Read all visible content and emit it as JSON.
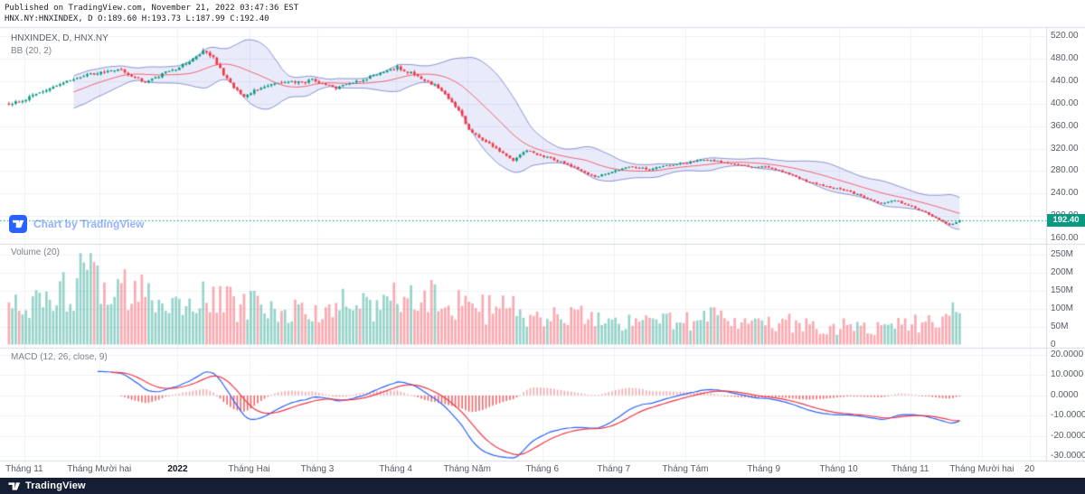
{
  "header": {
    "published_line": "Published on TradingView.com, November 21, 2022 03:47:36 EST",
    "symbol_line": "HNX.NY:HNXINDEX, D O:189.60 H:193.73 L:187.99 C:192.40"
  },
  "panes": {
    "price": {
      "title": "HNXINDEX, D, HNX.NY",
      "indicator": "BB (20, 2)"
    },
    "volume": {
      "title": "Volume (20)"
    },
    "macd": {
      "title": "MACD (12, 26, close, 9)"
    }
  },
  "watermark": {
    "label": "Chart by TradingView"
  },
  "footer": {
    "brand": "TradingView"
  },
  "price_badge": {
    "value": "192.40"
  },
  "axes": {
    "price_ticks": [
      {
        "label": "520.00",
        "value": 520
      },
      {
        "label": "480.00",
        "value": 480
      },
      {
        "label": "440.00",
        "value": 440
      },
      {
        "label": "400.00",
        "value": 400
      },
      {
        "label": "360.00",
        "value": 360
      },
      {
        "label": "320.00",
        "value": 320
      },
      {
        "label": "280.00",
        "value": 280
      },
      {
        "label": "240.00",
        "value": 240
      },
      {
        "label": "200.00",
        "value": 200
      },
      {
        "label": "160.00",
        "value": 160
      }
    ],
    "volume_ticks": [
      {
        "label": "250M",
        "value": 250
      },
      {
        "label": "200M",
        "value": 200
      },
      {
        "label": "150M",
        "value": 150
      },
      {
        "label": "100M",
        "value": 100
      },
      {
        "label": "50M",
        "value": 50
      },
      {
        "label": "0",
        "value": 0
      }
    ],
    "macd_ticks": [
      {
        "label": "20.0000",
        "value": 20
      },
      {
        "label": "10.0000",
        "value": 10
      },
      {
        "label": "0.0000",
        "value": 0
      },
      {
        "label": "-10.0000",
        "value": -10
      },
      {
        "label": "-20.0000",
        "value": -20
      },
      {
        "label": "-30.0000",
        "value": -30
      }
    ],
    "time_ticks": [
      {
        "label": "Tháng 11",
        "day": 5
      },
      {
        "label": "Tháng Mười hai",
        "day": 27
      },
      {
        "label": "2022",
        "day": 50,
        "strong": true
      },
      {
        "label": "Tháng Hai",
        "day": 71
      },
      {
        "label": "Tháng 3",
        "day": 91
      },
      {
        "label": "Tháng 4",
        "day": 114
      },
      {
        "label": "Tháng Năm",
        "day": 135
      },
      {
        "label": "Tháng 6",
        "day": 157
      },
      {
        "label": "Tháng 7",
        "day": 178
      },
      {
        "label": "Tháng Tám",
        "day": 199
      },
      {
        "label": "Tháng 9",
        "day": 222
      },
      {
        "label": "Tháng 10",
        "day": 244
      },
      {
        "label": "Tháng 11",
        "day": 265
      },
      {
        "label": "Tháng Mười hai",
        "day": 286
      },
      {
        "label": "20",
        "day": 300
      }
    ]
  },
  "colors": {
    "up": "#089981",
    "down": "#f23645",
    "vol_up": "rgba(8,153,129,0.42)",
    "vol_down": "rgba(242,54,69,0.42)",
    "bb_fill": "rgba(90,103,216,0.13)",
    "bb_line": "rgba(63,81,181,0.60)",
    "bb_basis": "rgba(242,54,69,0.75)",
    "macd_line": "#2962ff",
    "macd_signal": "#f23645",
    "hist_pos": "#f3abae",
    "hist_neg": "#ee686c",
    "grid": "#eef1f7",
    "border": "#d7dbe4",
    "last_price": "#089981",
    "badge_bg": "#089981",
    "footer_bg": "#151e33",
    "watermark_icon": "#2962ff"
  },
  "chart_data": {
    "type": "candlestick",
    "title": "HNXINDEX, D, HNX.NY",
    "symbol": "HNXINDEX",
    "exchange": "HNX.NY",
    "interval": "D",
    "quote": {
      "open": 189.6,
      "high": 193.73,
      "low": 187.99,
      "close": 192.4
    },
    "bar_count": 280,
    "axis_day_span": 305,
    "price_axis_range": [
      150,
      535
    ],
    "volume_axis_max_m": 250,
    "macd_axis_range": [
      -30,
      20
    ],
    "indicators": {
      "bollinger": {
        "length": 20,
        "mult": 2
      },
      "volume_ma": 20,
      "macd": {
        "fast": 12,
        "slow": 26,
        "source": "close",
        "signal": 9
      }
    },
    "price_waypoints": [
      [
        0,
        398
      ],
      [
        5,
        408
      ],
      [
        12,
        428
      ],
      [
        18,
        442
      ],
      [
        24,
        452
      ],
      [
        27,
        455
      ],
      [
        32,
        462
      ],
      [
        36,
        448
      ],
      [
        40,
        438
      ],
      [
        45,
        452
      ],
      [
        50,
        465
      ],
      [
        54,
        478
      ],
      [
        57,
        493
      ],
      [
        60,
        482
      ],
      [
        63,
        452
      ],
      [
        66,
        428
      ],
      [
        69,
        412
      ],
      [
        71,
        420
      ],
      [
        76,
        432
      ],
      [
        81,
        440
      ],
      [
        86,
        436
      ],
      [
        89,
        442
      ],
      [
        91,
        438
      ],
      [
        96,
        428
      ],
      [
        101,
        436
      ],
      [
        106,
        448
      ],
      [
        110,
        458
      ],
      [
        114,
        464
      ],
      [
        118,
        454
      ],
      [
        122,
        442
      ],
      [
        126,
        428
      ],
      [
        130,
        404
      ],
      [
        133,
        378
      ],
      [
        135,
        352
      ],
      [
        139,
        336
      ],
      [
        144,
        316
      ],
      [
        148,
        298
      ],
      [
        152,
        317
      ],
      [
        155,
        310
      ],
      [
        157,
        306
      ],
      [
        162,
        296
      ],
      [
        167,
        283
      ],
      [
        172,
        269
      ],
      [
        175,
        275
      ],
      [
        178,
        282
      ],
      [
        183,
        288
      ],
      [
        188,
        283
      ],
      [
        193,
        290
      ],
      [
        199,
        295
      ],
      [
        205,
        300
      ],
      [
        210,
        295
      ],
      [
        216,
        289
      ],
      [
        222,
        287
      ],
      [
        228,
        277
      ],
      [
        234,
        262
      ],
      [
        240,
        252
      ],
      [
        244,
        249
      ],
      [
        250,
        236
      ],
      [
        256,
        222
      ],
      [
        260,
        228
      ],
      [
        265,
        217
      ],
      [
        269,
        206
      ],
      [
        273,
        194
      ],
      [
        276,
        184
      ],
      [
        279,
        192.4
      ]
    ],
    "volume_waypoints_m": [
      [
        0,
        95
      ],
      [
        10,
        130
      ],
      [
        18,
        170
      ],
      [
        24,
        235
      ],
      [
        30,
        150
      ],
      [
        40,
        135
      ],
      [
        50,
        120
      ],
      [
        60,
        135
      ],
      [
        70,
        110
      ],
      [
        80,
        95
      ],
      [
        91,
        105
      ],
      [
        105,
        115
      ],
      [
        114,
        120
      ],
      [
        125,
        130
      ],
      [
        135,
        110
      ],
      [
        147,
        95
      ],
      [
        157,
        85
      ],
      [
        172,
        78
      ],
      [
        185,
        62
      ],
      [
        199,
        75
      ],
      [
        210,
        85
      ],
      [
        222,
        68
      ],
      [
        234,
        58
      ],
      [
        244,
        52
      ],
      [
        256,
        48
      ],
      [
        265,
        58
      ],
      [
        272,
        75
      ],
      [
        279,
        85
      ]
    ]
  }
}
